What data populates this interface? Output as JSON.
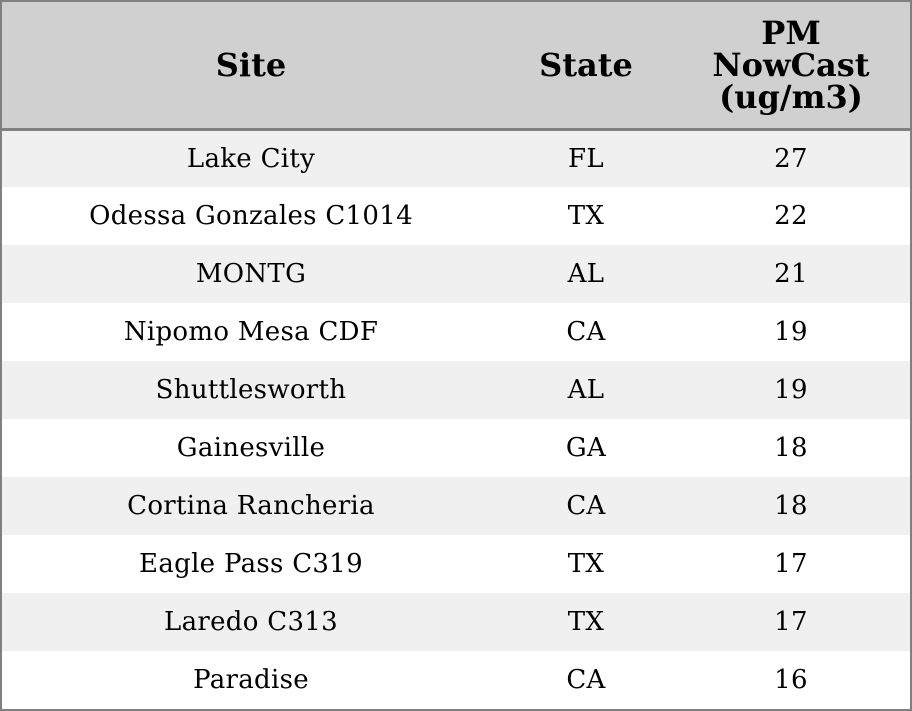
{
  "table": {
    "headers": [
      "Site",
      "State",
      "PM NowCast (ug/m3)"
    ],
    "rows": [
      [
        "Lake City",
        "FL",
        "27"
      ],
      [
        "Odessa Gonzales C1014",
        "TX",
        "22"
      ],
      [
        "MONTG",
        "AL",
        "21"
      ],
      [
        "Nipomo Mesa CDF",
        "CA",
        "19"
      ],
      [
        "Shuttlesworth",
        "AL",
        "19"
      ],
      [
        "Gainesville",
        "GA",
        "18"
      ],
      [
        "Cortina Rancheria",
        "CA",
        "18"
      ],
      [
        "Eagle Pass C319",
        "TX",
        "17"
      ],
      [
        "Laredo C313",
        "TX",
        "17"
      ],
      [
        "Paradise",
        "CA",
        "16"
      ]
    ]
  },
  "colors": {
    "header_bg": "#d0d0d0",
    "odd_row_bg": "#f0f0f0",
    "even_row_bg": "#ffffff",
    "border": "#808080"
  }
}
